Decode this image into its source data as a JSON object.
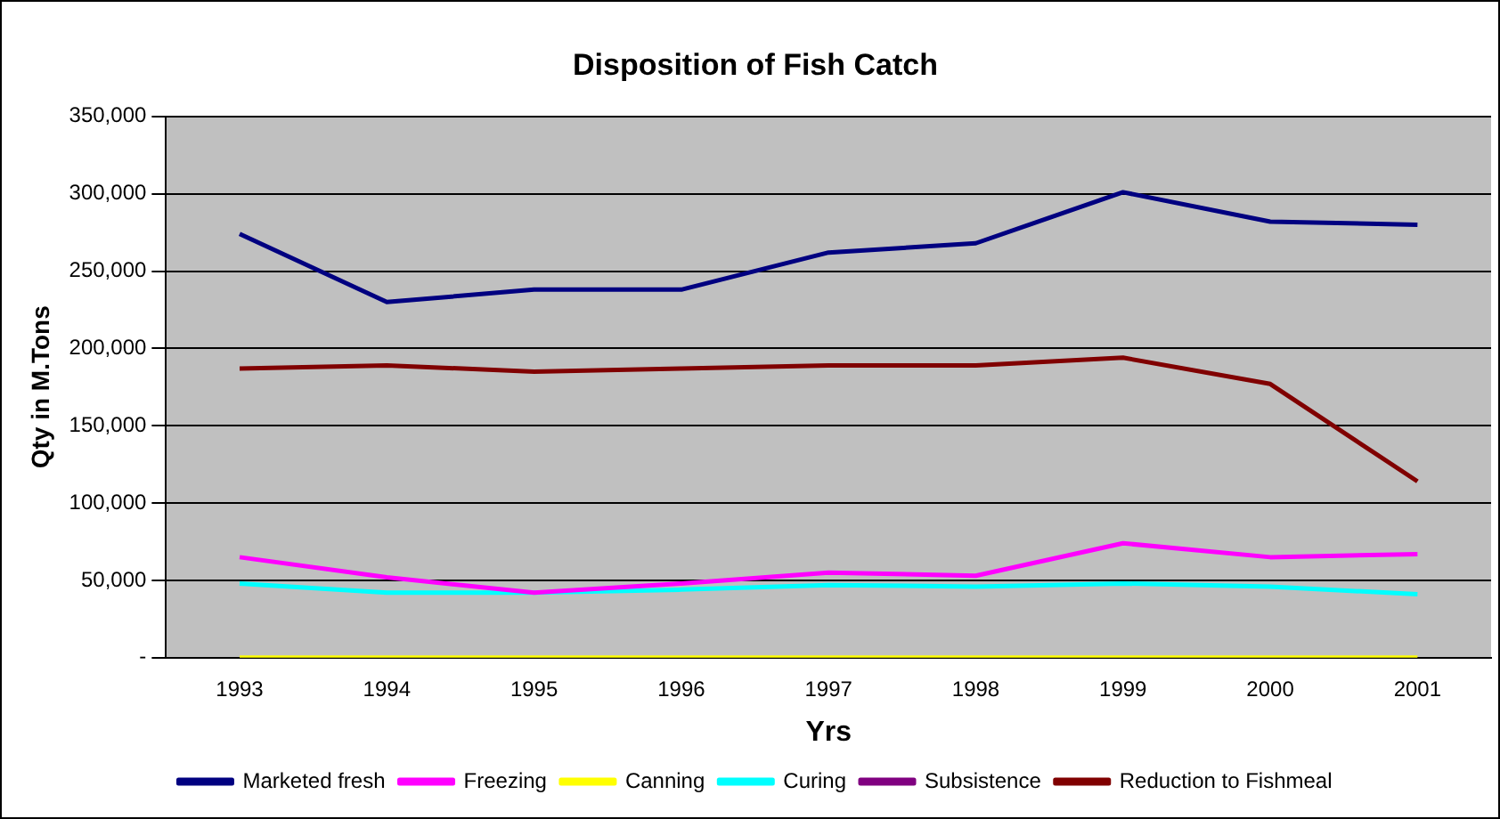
{
  "chart_data": {
    "type": "line",
    "title": "Disposition of Fish Catch",
    "xlabel": "Yrs",
    "ylabel": "Qty in M.Tons",
    "categories": [
      "1993",
      "1994",
      "1995",
      "1996",
      "1997",
      "1998",
      "1999",
      "2000",
      "2001"
    ],
    "series": [
      {
        "name": "Marketed fresh",
        "color": "#000080",
        "values": [
          274000,
          230000,
          238000,
          238000,
          262000,
          268000,
          301000,
          282000,
          280000
        ]
      },
      {
        "name": "Freezing",
        "color": "#ff00ff",
        "values": [
          65000,
          52000,
          42000,
          48000,
          55000,
          53000,
          74000,
          65000,
          67000
        ]
      },
      {
        "name": "Canning",
        "color": "#ffff00",
        "values": [
          0,
          0,
          0,
          0,
          0,
          0,
          0,
          0,
          0
        ]
      },
      {
        "name": "Curing",
        "color": "#00ffff",
        "values": [
          48000,
          42000,
          42000,
          44000,
          47000,
          46000,
          48000,
          46000,
          41000
        ]
      },
      {
        "name": "Subsistence",
        "color": "#800080",
        "values": [
          null,
          null,
          null,
          null,
          null,
          null,
          null,
          null,
          null
        ]
      },
      {
        "name": "Reduction to Fishmeal",
        "color": "#800000",
        "values": [
          187000,
          189000,
          185000,
          187000,
          189000,
          189000,
          194000,
          177000,
          114000
        ]
      }
    ],
    "ylim": [
      0,
      350000
    ],
    "yticks": [
      {
        "value": 0,
        "label": "-"
      },
      {
        "value": 50000,
        "label": "50,000"
      },
      {
        "value": 100000,
        "label": "100,000"
      },
      {
        "value": 150000,
        "label": "150,000"
      },
      {
        "value": 200000,
        "label": "200,000"
      },
      {
        "value": 250000,
        "label": "250,000"
      },
      {
        "value": 300000,
        "label": "300,000"
      },
      {
        "value": 350000,
        "label": "350,000"
      }
    ],
    "grid": "y",
    "legend": "bottom",
    "marker": "none",
    "line_style": "solid"
  }
}
